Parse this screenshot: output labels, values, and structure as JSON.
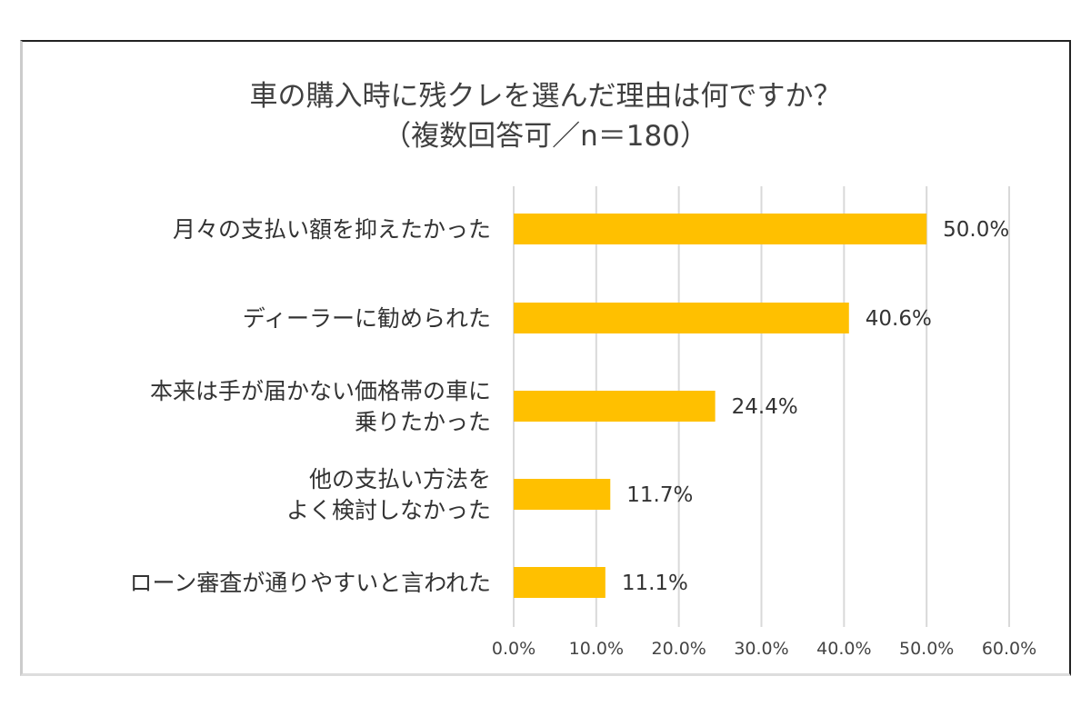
{
  "chart_data": {
    "type": "bar",
    "orientation": "horizontal",
    "title": [
      "車の購入時に残クレを選んだ理由は何ですか？",
      "（複数回答可／n＝180）"
    ],
    "categories": [
      [
        "月々の支払い額を抑えたかった"
      ],
      [
        "ディーラーに勧められた"
      ],
      [
        "本来は手が届かない価格帯の車に",
        "乗りたかった"
      ],
      [
        "他の支払い方法を",
        "よく検討しなかった"
      ],
      [
        "ローン審査が通りやすいと言われた"
      ]
    ],
    "values": [
      50.0,
      40.6,
      24.4,
      11.7,
      11.1
    ],
    "value_labels": [
      "50.0%",
      "40.6%",
      "24.4%",
      "11.7%",
      "11.1%"
    ],
    "xlim": [
      0,
      60
    ],
    "ticks": [
      "0.0%",
      "10.0%",
      "20.0%",
      "30.0%",
      "40.0%",
      "50.0%",
      "60.0%"
    ],
    "grid": true,
    "bar_color": "#FFC000",
    "grid_color": "#D9D9D9"
  }
}
